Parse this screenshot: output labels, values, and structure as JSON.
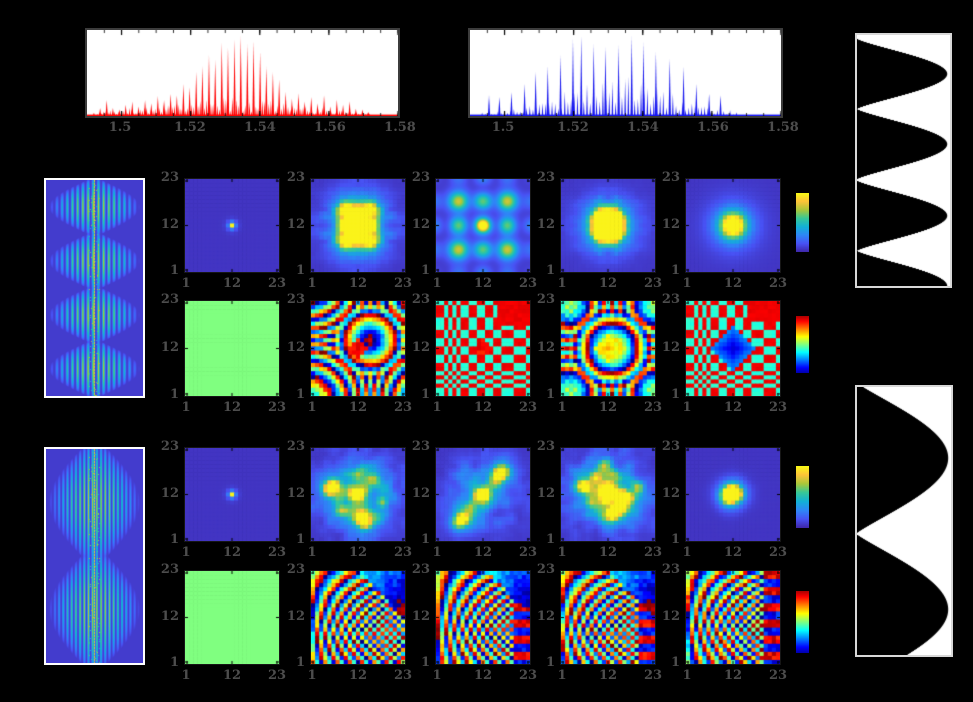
{
  "figure": {
    "background": "#000000",
    "frame_color": "#3c3c3c",
    "tick_label_color": "#4d4d4d",
    "description": "Pulse-shaping figure: two comb spectra, temporal intensity profiles, interference traces, and 23x23 amplitude/phase mask matrices with parula and jet colorbars"
  },
  "spectrum_axis": {
    "xmin": 1.49,
    "xmax": 1.58,
    "ticks": [
      {
        "v": 1.5,
        "label": "1.5"
      },
      {
        "v": 1.52,
        "label": "1.52"
      },
      {
        "v": 1.54,
        "label": "1.54"
      },
      {
        "v": 1.56,
        "label": "1.56"
      },
      {
        "v": 1.58,
        "label": "1.58"
      }
    ]
  },
  "map_axis": {
    "xticks": [
      {
        "v": 1,
        "label": "1"
      },
      {
        "v": 12,
        "label": "12"
      },
      {
        "v": 23,
        "label": "23"
      }
    ],
    "yticks": [
      {
        "v": 23,
        "label": "23"
      },
      {
        "v": 12,
        "label": "12"
      },
      {
        "v": 1,
        "label": "1"
      }
    ]
  },
  "chart_data": {
    "spectrum_red": {
      "type": "line",
      "color": "#ff0000",
      "xlim": [
        1.49,
        1.58
      ],
      "seed": 8,
      "description": "Red frequency-comb spectrum, Gaussian-like envelope centered near 1.533 um, noisy wings",
      "peaks": [
        [
          1.492,
          0.04
        ],
        [
          1.4938,
          0.1
        ],
        [
          1.4957,
          0.2
        ],
        [
          1.4975,
          0.1
        ],
        [
          1.4994,
          0.08
        ],
        [
          1.5012,
          0.14
        ],
        [
          1.5031,
          0.18
        ],
        [
          1.5049,
          0.12
        ],
        [
          1.5068,
          0.2
        ],
        [
          1.5086,
          0.16
        ],
        [
          1.5105,
          0.25
        ],
        [
          1.5123,
          0.2
        ],
        [
          1.5142,
          0.28
        ],
        [
          1.516,
          0.26
        ],
        [
          1.5179,
          0.4
        ],
        [
          1.5197,
          0.36
        ],
        [
          1.5216,
          0.55
        ],
        [
          1.5234,
          0.62
        ],
        [
          1.5253,
          0.76
        ],
        [
          1.5271,
          0.7
        ],
        [
          1.529,
          0.92
        ],
        [
          1.5308,
          0.86
        ],
        [
          1.5327,
          0.96
        ],
        [
          1.5345,
          1.0
        ],
        [
          1.5364,
          0.9
        ],
        [
          1.5382,
          0.94
        ],
        [
          1.5401,
          0.8
        ],
        [
          1.5419,
          0.62
        ],
        [
          1.5438,
          0.55
        ],
        [
          1.5456,
          0.45
        ],
        [
          1.5475,
          0.3
        ],
        [
          1.5493,
          0.22
        ],
        [
          1.5512,
          0.28
        ],
        [
          1.553,
          0.18
        ],
        [
          1.5549,
          0.24
        ],
        [
          1.5567,
          0.16
        ],
        [
          1.5586,
          0.26
        ],
        [
          1.5604,
          0.12
        ],
        [
          1.5623,
          0.2
        ],
        [
          1.5641,
          0.14
        ],
        [
          1.566,
          0.18
        ],
        [
          1.5678,
          0.09
        ],
        [
          1.5697,
          0.08
        ],
        [
          1.5715,
          0.05
        ]
      ],
      "noise_floor": {
        "start": 1.493,
        "end": 1.572,
        "spacing": 0.00062,
        "amp": 0.13,
        "center": 1.531,
        "sigma": 0.026,
        "base": 0.03
      }
    },
    "spectrum_blue": {
      "type": "line",
      "color": "#1414f0",
      "xlim": [
        1.49,
        1.58
      ],
      "seed": 17,
      "description": "Blue comb spectrum: tall widely spaced lines over a dense floor of shorter lines, broad envelope centered near 1.532 um",
      "peaks": [
        [
          1.4955,
          0.26
        ],
        [
          1.4985,
          0.24
        ],
        [
          1.502,
          0.3
        ],
        [
          1.5058,
          0.4
        ],
        [
          1.509,
          0.55
        ],
        [
          1.5125,
          0.62
        ],
        [
          1.5162,
          0.76
        ],
        [
          1.5198,
          0.96
        ],
        [
          1.5222,
          1.0
        ],
        [
          1.5258,
          0.9
        ],
        [
          1.5292,
          0.86
        ],
        [
          1.533,
          0.88
        ],
        [
          1.5368,
          1.0
        ],
        [
          1.5402,
          0.92
        ],
        [
          1.5438,
          0.8
        ],
        [
          1.5478,
          0.72
        ],
        [
          1.5518,
          0.62
        ],
        [
          1.5555,
          0.4
        ],
        [
          1.5592,
          0.28
        ],
        [
          1.5625,
          0.26
        ]
      ],
      "noise_floor": {
        "start": 1.4935,
        "end": 1.568,
        "spacing": 0.00092,
        "amp": 0.33,
        "center": 1.532,
        "sigma": 0.02,
        "base": 0.03
      }
    },
    "temporal_top": {
      "type": "area",
      "orientation": "vertical",
      "fill": "#ffffff",
      "bg": "#000000",
      "description": "Temporal intensity profile, ~3.6 oscillations; black cusps point right",
      "peak_positions": [
        0.155,
        0.435,
        0.72,
        1.0
      ],
      "halfwidth": 0.14,
      "sharpness": 1.25
    },
    "temporal_bottom": {
      "type": "area",
      "orientation": "vertical",
      "fill": "#ffffff",
      "bg": "#000000",
      "description": "Temporal intensity profile, 2 broad oscillations",
      "peak_positions": [
        0.265,
        0.83
      ],
      "halfwidth": 0.28,
      "sharpness": 1.1
    },
    "trace_top": {
      "type": "heatmap",
      "colormap": "parula",
      "lobes": 4,
      "stripe": 5.2,
      "base": 0.16,
      "description": "Interference trace: 4 lens-shaped lobes of vertical striations, bright dotted center line"
    },
    "trace_bottom": {
      "type": "heatmap",
      "colormap": "parula",
      "lobes": 2,
      "stripe": 4.2,
      "base": 0.3,
      "description": "Interference trace: 2 large lobes of fine vertical striations, bright dotted center line"
    },
    "r1c1": {
      "type": "heatmap",
      "colormap": "parula",
      "pattern": "delta",
      "n": 23,
      "spots": [
        [
          12,
          12,
          1,
          0.4
        ]
      ],
      "description": "single bright pixel at (12,12)"
    },
    "r1c2": {
      "type": "heatmap",
      "colormap": "parula",
      "pattern": "speckle",
      "n": 23,
      "sym": 4,
      "seed": 3,
      "speckle": 0.5,
      "env": 5.5,
      "spots": [
        [
          12,
          12,
          1
        ],
        [
          9,
          16,
          0.8
        ],
        [
          15,
          16,
          0.75
        ],
        [
          9,
          8,
          0.8
        ],
        [
          15,
          8,
          0.75
        ],
        [
          9,
          12,
          0.55
        ],
        [
          15,
          12,
          0.5
        ],
        [
          12,
          16,
          0.5
        ],
        [
          12,
          8,
          0.5
        ]
      ],
      "description": "four-fold symmetric blob cluster, bright center"
    },
    "r1c3": {
      "type": "heatmap",
      "colormap": "parula",
      "pattern": "smoothgrid",
      "n": 23,
      "period": 6.2,
      "env": 8,
      "corners": [
        [
          6,
          18
        ],
        [
          18,
          18
        ],
        [
          6,
          6
        ],
        [
          18,
          6
        ]
      ],
      "description": "smooth crosshatch grid of blobs, bright corners and center"
    },
    "r1c4": {
      "type": "heatmap",
      "colormap": "parula",
      "pattern": "speckle",
      "n": 23,
      "sym": 4,
      "seed": 9,
      "speckle": 0.45,
      "env": 5,
      "spots": [
        [
          12,
          12,
          1
        ],
        [
          10,
          14,
          0.7
        ],
        [
          14,
          14,
          0.6
        ],
        [
          10,
          10,
          0.65
        ],
        [
          14,
          10,
          0.6
        ],
        [
          12,
          15,
          0.45
        ],
        [
          15,
          12,
          0.45
        ],
        [
          9,
          12,
          0.4
        ],
        [
          12,
          9,
          0.4
        ]
      ],
      "description": "symmetric speckle cluster, bright center"
    },
    "r1c5": {
      "type": "heatmap",
      "colormap": "parula",
      "pattern": "speckle",
      "n": 23,
      "sym": 4,
      "seed": 5,
      "speckle": 0.06,
      "env": 4,
      "spots": [
        [
          12,
          12,
          1,
          1.3
        ],
        [
          12,
          12,
          0.5,
          2.3
        ]
      ],
      "description": "single central blob with cyan halo"
    },
    "r2c1": {
      "type": "heatmap",
      "colormap": "jet",
      "pattern": "uniform",
      "n": 23,
      "value": 0,
      "description": "uniform zero phase (light green)"
    },
    "r2c2": {
      "type": "heatmap",
      "colormap": "jet",
      "pattern": "rings",
      "n": 23,
      "center": [
        15,
        14
      ],
      "q2": 0.085,
      "q1": 0.5,
      "offset": 2.6,
      "checker_r0": 6,
      "core": [
        2.5,
        3
      ],
      "seed": 31,
      "description": "wrapped quadratic phase rings with checkered wings"
    },
    "r2c3": {
      "type": "heatmap",
      "colormap": "jet",
      "pattern": "checker",
      "n": 23,
      "red": 2.45,
      "cyan": -0.55,
      "block": [
        16,
        18
      ],
      "seed": 33,
      "description": "red/turquoise binary checkerboard, cell size grows toward top-right, large red block top-right"
    },
    "r2c4": {
      "type": "heatmap",
      "colormap": "jet",
      "pattern": "rings",
      "n": 23,
      "center": [
        13,
        12
      ],
      "q2": -0.16,
      "q1": 0.2,
      "offset": 1.2,
      "checker_r0": 7,
      "core": [
        1.15,
        4
      ],
      "seed": 35,
      "description": "wrapped phase with yellow diamond core and checkered wings"
    },
    "r2c5": {
      "type": "heatmap",
      "colormap": "jet",
      "pattern": "checker",
      "n": 23,
      "red": 2.45,
      "cyan": -0.55,
      "block": [
        16,
        19
      ],
      "diamond": 5,
      "seed": 37,
      "description": "red/turquoise checkerboard with blue diamond at center"
    },
    "r3c1": {
      "type": "heatmap",
      "colormap": "parula",
      "pattern": "delta",
      "n": 23,
      "spots": [
        [
          12,
          12,
          1,
          0.4
        ]
      ],
      "description": "single bright pixel at (12,12)"
    },
    "r3c2": {
      "type": "heatmap",
      "colormap": "parula",
      "pattern": "speckle",
      "n": 23,
      "sym": 0,
      "seed": 41,
      "speckle": 0.5,
      "env": 6.5,
      "spots": [
        [
          12,
          12,
          1
        ],
        [
          6,
          14,
          0.8
        ],
        [
          5,
          13,
          0.55
        ],
        [
          12,
          17,
          0.45
        ],
        [
          16,
          16,
          0.35
        ],
        [
          13,
          6,
          0.75
        ],
        [
          14,
          5,
          0.5
        ],
        [
          8,
          8,
          0.4
        ],
        [
          18,
          10,
          0.3
        ]
      ],
      "description": "irregular blob cluster, bright center"
    },
    "r3c3": {
      "type": "heatmap",
      "colormap": "parula",
      "pattern": "speckle",
      "n": 23,
      "sym": 0,
      "seed": 43,
      "speckle": 0.35,
      "env": 6,
      "spots": [
        [
          12,
          12,
          1
        ],
        [
          16,
          17,
          0.75
        ],
        [
          17,
          18,
          0.45
        ],
        [
          7,
          6,
          0.7
        ],
        [
          6,
          5,
          0.45
        ],
        [
          9,
          9,
          0.3
        ],
        [
          15,
          15,
          0.3
        ]
      ],
      "description": "diagonal blob arrangement: center plus upper-right and lower-left"
    },
    "r3c4": {
      "type": "heatmap",
      "colormap": "parula",
      "pattern": "speckle",
      "n": 23,
      "sym": 0,
      "seed": 45,
      "speckle": 0.55,
      "env": 6.5,
      "spots": [
        [
          12,
          12,
          1
        ],
        [
          12,
          13,
          0.85
        ],
        [
          6,
          14,
          0.75
        ],
        [
          9,
          16,
          0.55
        ],
        [
          15,
          9,
          0.65
        ],
        [
          13,
          7,
          0.8
        ],
        [
          17,
          11,
          0.45
        ],
        [
          8,
          10,
          0.45
        ],
        [
          11,
          19,
          0.5
        ],
        [
          19,
          14,
          0.35
        ]
      ],
      "description": "dense scattered blobs, bright center"
    },
    "r3c5": {
      "type": "heatmap",
      "colormap": "parula",
      "pattern": "speckle",
      "n": 23,
      "sym": 0,
      "seed": 47,
      "speckle": 0.05,
      "env": 3.5,
      "spots": [
        [
          11,
          12,
          1,
          0.9
        ],
        [
          12,
          12,
          0.8,
          0.9
        ],
        [
          12,
          13,
          0.6,
          0.9
        ],
        [
          13,
          12,
          0.45,
          0.9
        ],
        [
          11,
          11,
          0.5,
          0.9
        ]
      ],
      "description": "tight central cluster only"
    },
    "r4c1": {
      "type": "heatmap",
      "colormap": "jet",
      "pattern": "uniform",
      "n": 23,
      "value": 0,
      "description": "uniform zero phase (light green)"
    },
    "r4c2": {
      "type": "heatmap",
      "colormap": "jet",
      "pattern": "fan",
      "n": 23,
      "a": 0.85,
      "b": 0.18,
      "d": 0.35,
      "tri": 33,
      "bands": false,
      "noise": 0.8,
      "seed": 51,
      "description": "chirped fan stripes, frequency increasing downward, smooth blue triangle top-right"
    },
    "r4c3": {
      "type": "heatmap",
      "colormap": "jet",
      "pattern": "fan",
      "n": 23,
      "a": 0.95,
      "b": 0.16,
      "d": 0.2,
      "tri": 34,
      "bands": true,
      "noise": 0.7,
      "seed": 53,
      "description": "chirped fan stripes with horizontal bands at right edge"
    },
    "r4c4": {
      "type": "heatmap",
      "colormap": "jet",
      "pattern": "fan",
      "n": 23,
      "a": 0.8,
      "b": 0.2,
      "d": 0.5,
      "tri": 33,
      "bands": true,
      "noise": 0.9,
      "seed": 55,
      "description": "chirped fan stripes, blue triangle top-right, banded right edge"
    },
    "r4c5": {
      "type": "heatmap",
      "colormap": "jet",
      "pattern": "fan",
      "n": 23,
      "a": 1.05,
      "b": 0.15,
      "d": 0.3,
      "tri": 44,
      "bands": true,
      "noise": 1.0,
      "seed": 57,
      "description": "dense scrambled chirp stripes with red vertical band at right"
    },
    "cb1": {
      "type": "colorbar",
      "colormap": "parula",
      "description": "amplitude colorbar, dark blue to yellow"
    },
    "cb2": {
      "type": "colorbar",
      "colormap": "jet",
      "description": "phase colorbar, blue to red"
    },
    "cb3": {
      "type": "colorbar",
      "colormap": "parula",
      "description": "amplitude colorbar, dark blue to yellow"
    },
    "cb4": {
      "type": "colorbar",
      "colormap": "jet",
      "description": "phase colorbar, blue to red"
    }
  }
}
